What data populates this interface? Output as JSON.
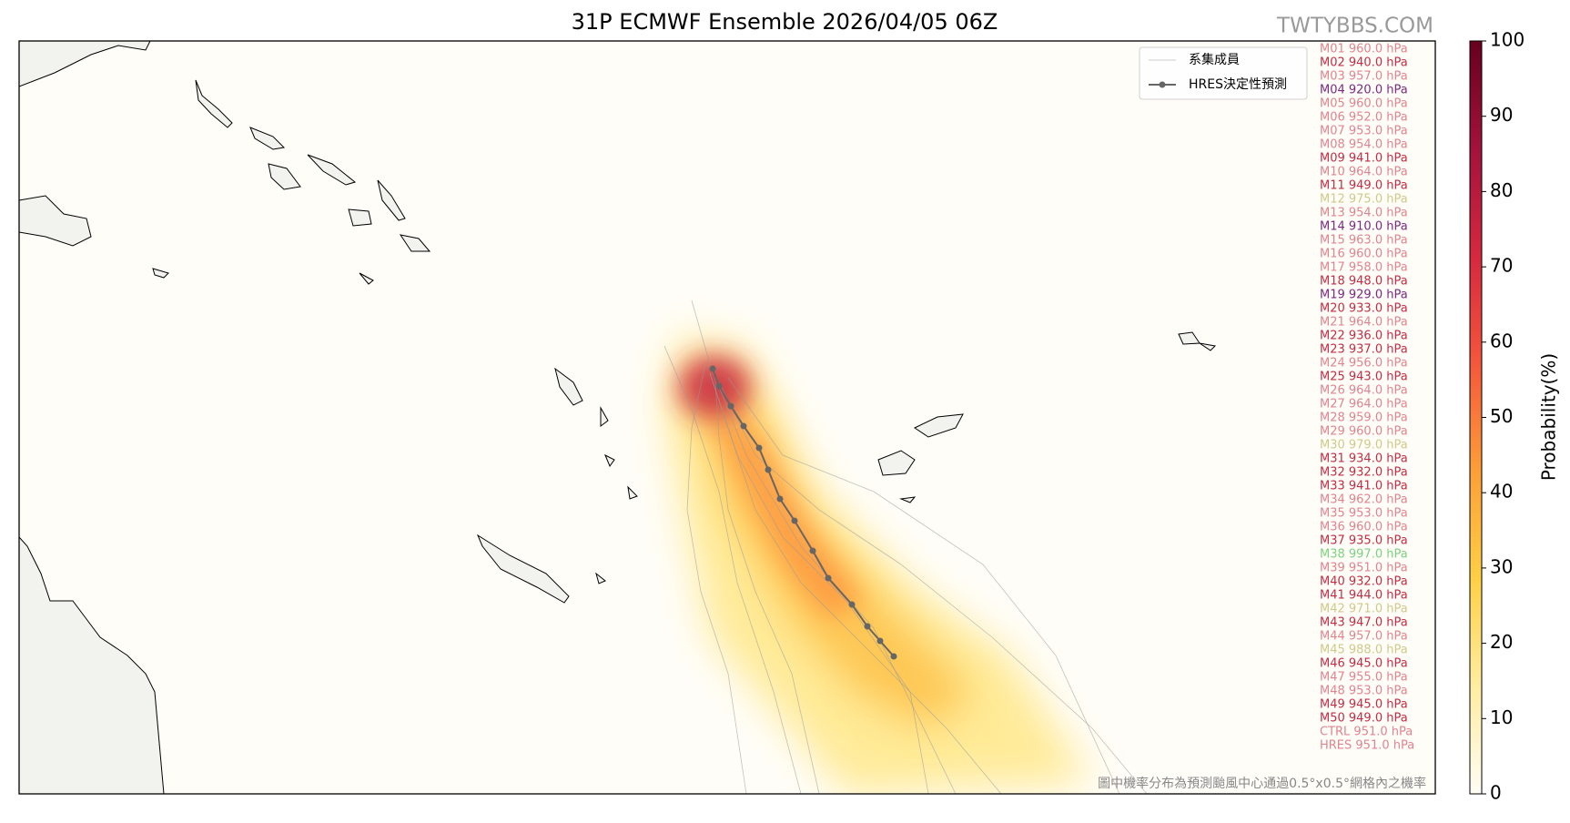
{
  "header": {
    "title": "31P  ECMWF Ensemble 2026/04/05 06Z",
    "watermark": "TWTYBBS.COM"
  },
  "legend": {
    "members": "系集成員",
    "hres": "HRES決定性預測"
  },
  "members": [
    {
      "label": "M01 960.0 hPa",
      "color": "#e0848f"
    },
    {
      "label": "M02 940.0 hPa",
      "color": "#c22d45"
    },
    {
      "label": "M03 957.0 hPa",
      "color": "#e0848f"
    },
    {
      "label": "M04 920.0 hPa",
      "color": "#7a2a80"
    },
    {
      "label": "M05 960.0 hPa",
      "color": "#e0848f"
    },
    {
      "label": "M06 952.0 hPa",
      "color": "#e0848f"
    },
    {
      "label": "M07 953.0 hPa",
      "color": "#e0848f"
    },
    {
      "label": "M08 954.0 hPa",
      "color": "#e0848f"
    },
    {
      "label": "M09 941.0 hPa",
      "color": "#c22d45"
    },
    {
      "label": "M10 964.0 hPa",
      "color": "#e0848f"
    },
    {
      "label": "M11 949.0 hPa",
      "color": "#c22d45"
    },
    {
      "label": "M12 975.0 hPa",
      "color": "#cfc98a"
    },
    {
      "label": "M13 954.0 hPa",
      "color": "#e0848f"
    },
    {
      "label": "M14 910.0 hPa",
      "color": "#7a2a80"
    },
    {
      "label": "M15 963.0 hPa",
      "color": "#e0848f"
    },
    {
      "label": "M16 960.0 hPa",
      "color": "#e0848f"
    },
    {
      "label": "M17 958.0 hPa",
      "color": "#e0848f"
    },
    {
      "label": "M18 948.0 hPa",
      "color": "#c22d45"
    },
    {
      "label": "M19 929.0 hPa",
      "color": "#7a2a80"
    },
    {
      "label": "M20 933.0 hPa",
      "color": "#c22d45"
    },
    {
      "label": "M21 964.0 hPa",
      "color": "#e0848f"
    },
    {
      "label": "M22 936.0 hPa",
      "color": "#c22d45"
    },
    {
      "label": "M23 937.0 hPa",
      "color": "#c22d45"
    },
    {
      "label": "M24 956.0 hPa",
      "color": "#e0848f"
    },
    {
      "label": "M25 943.0 hPa",
      "color": "#c22d45"
    },
    {
      "label": "M26 964.0 hPa",
      "color": "#e0848f"
    },
    {
      "label": "M27 964.0 hPa",
      "color": "#e0848f"
    },
    {
      "label": "M28 959.0 hPa",
      "color": "#e0848f"
    },
    {
      "label": "M29 960.0 hPa",
      "color": "#e0848f"
    },
    {
      "label": "M30 979.0 hPa",
      "color": "#cfc98a"
    },
    {
      "label": "M31 934.0 hPa",
      "color": "#c22d45"
    },
    {
      "label": "M32 932.0 hPa",
      "color": "#c22d45"
    },
    {
      "label": "M33 941.0 hPa",
      "color": "#c22d45"
    },
    {
      "label": "M34 962.0 hPa",
      "color": "#e0848f"
    },
    {
      "label": "M35 953.0 hPa",
      "color": "#e0848f"
    },
    {
      "label": "M36 960.0 hPa",
      "color": "#e0848f"
    },
    {
      "label": "M37 935.0 hPa",
      "color": "#c22d45"
    },
    {
      "label": "M38 997.0 hPa",
      "color": "#7cd27f"
    },
    {
      "label": "M39 951.0 hPa",
      "color": "#e0848f"
    },
    {
      "label": "M40 932.0 hPa",
      "color": "#c22d45"
    },
    {
      "label": "M41 944.0 hPa",
      "color": "#c22d45"
    },
    {
      "label": "M42 971.0 hPa",
      "color": "#cfc98a"
    },
    {
      "label": "M43 947.0 hPa",
      "color": "#c22d45"
    },
    {
      "label": "M44 957.0 hPa",
      "color": "#e0848f"
    },
    {
      "label": "M45 988.0 hPa",
      "color": "#cfc98a"
    },
    {
      "label": "M46 945.0 hPa",
      "color": "#c22d45"
    },
    {
      "label": "M47 955.0 hPa",
      "color": "#e0848f"
    },
    {
      "label": "M48 953.0 hPa",
      "color": "#e0848f"
    },
    {
      "label": "M49 945.0 hPa",
      "color": "#c22d45"
    },
    {
      "label": "M50 949.0 hPa",
      "color": "#c22d45"
    },
    {
      "label": "CTRL 951.0 hPa",
      "color": "#e0848f"
    },
    {
      "label": "HRES 951.0 hPa",
      "color": "#e0848f"
    }
  ],
  "colorbar": {
    "label": "Probability(%)",
    "range": [
      0,
      100
    ],
    "ticks": [
      0,
      10,
      20,
      30,
      40,
      50,
      60,
      70,
      80,
      90,
      100
    ],
    "colors": [
      "#fffdf5",
      "#ffeda0",
      "#fed045",
      "#fd9f38",
      "#f5573b",
      "#d6283f",
      "#a3123c",
      "#67001f"
    ]
  },
  "footnote": "圖中機率分布為預測颱風中心通過0.5°x0.5°網格內之機率"
}
